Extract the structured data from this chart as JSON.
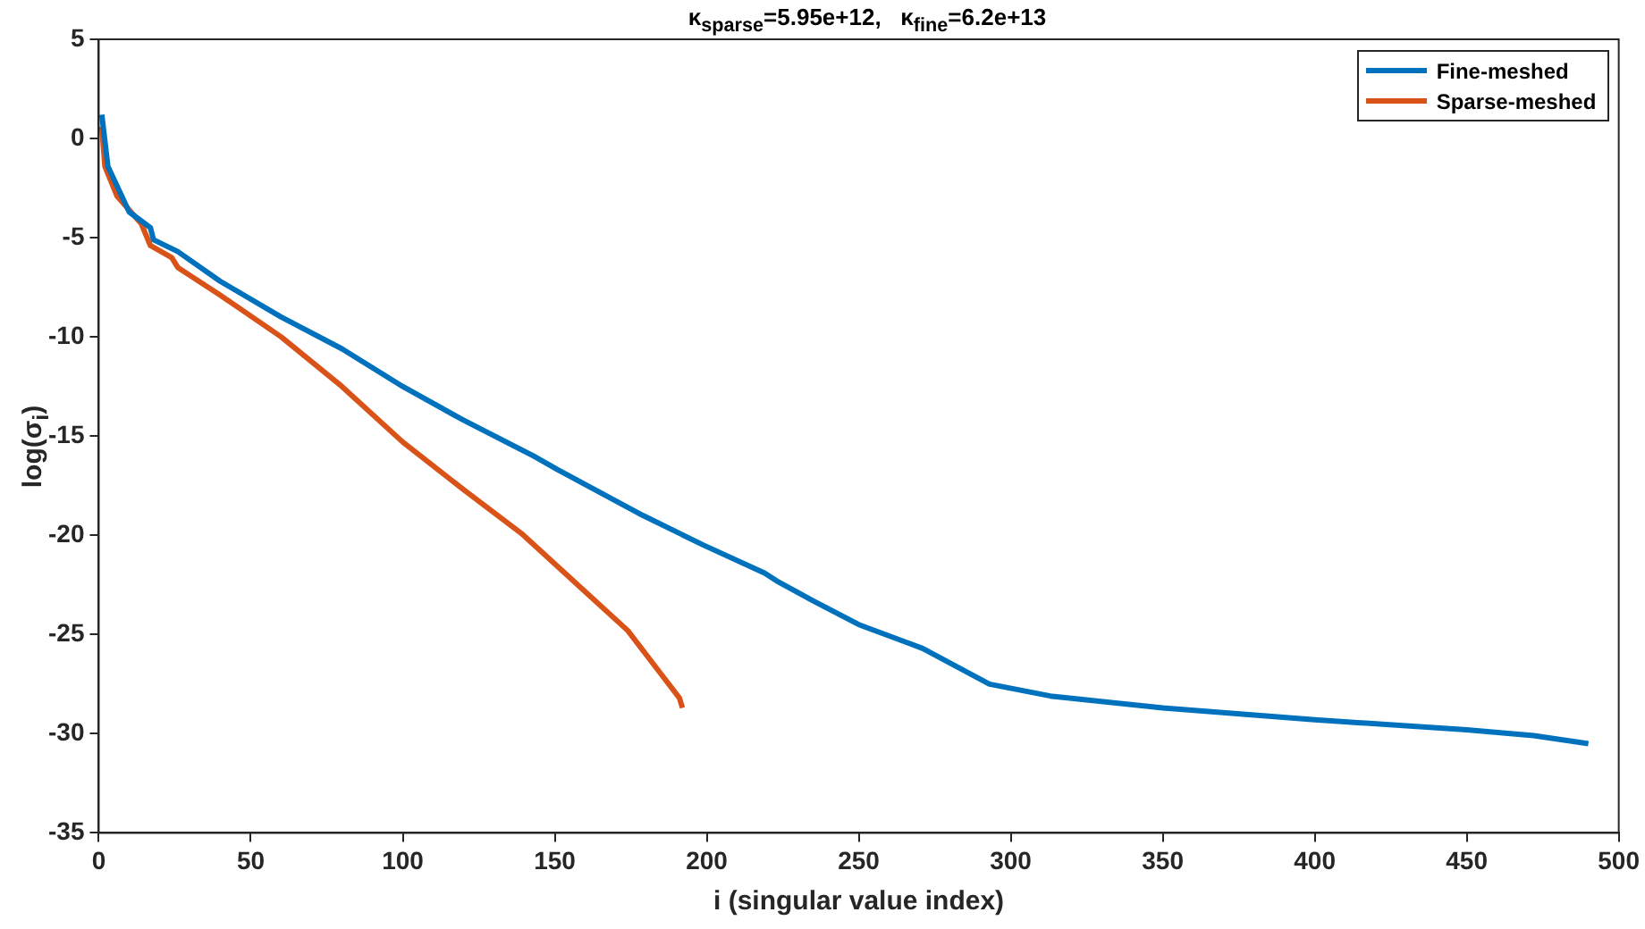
{
  "chart_data": {
    "type": "line",
    "title": "κ$_{sparse}$=5.95e+12,   κ$_{fine}$=6.2e+13",
    "xlabel": "i (singular value index)",
    "ylabel": "log(σ$_{i}$)",
    "xlim": [
      0,
      500
    ],
    "xticks": [
      0,
      50,
      100,
      150,
      200,
      250,
      300,
      350,
      400,
      450,
      500
    ],
    "ylim": [
      -35,
      5
    ],
    "yticks": [
      -35,
      -30,
      -25,
      -20,
      -15,
      -10,
      -5,
      0,
      5
    ],
    "grid": false,
    "legend": "top right",
    "series": [
      {
        "name": "Fine-meshed",
        "color": "#0072bd",
        "x": [
          1,
          3,
          10,
          17,
          18,
          26,
          40,
          60,
          80,
          100,
          120,
          143,
          151,
          179,
          199,
          219,
          223,
          235,
          250,
          271,
          293,
          313,
          350,
          400,
          450,
          472,
          490
        ],
        "values": [
          1.2,
          -1.4,
          -3.7,
          -4.5,
          -5.1,
          -5.7,
          -7.2,
          -9.0,
          -10.6,
          -12.5,
          -14.2,
          -16.0,
          -16.7,
          -19.0,
          -20.5,
          -21.9,
          -22.3,
          -23.3,
          -24.5,
          -25.7,
          -27.5,
          -28.1,
          -28.7,
          -29.3,
          -29.8,
          -30.1,
          -30.5
        ]
      },
      {
        "name": "Sparse-meshed",
        "color": "#d95319",
        "x": [
          1,
          2,
          6,
          14,
          17,
          24,
          26,
          40,
          60,
          80,
          100,
          120,
          139,
          159,
          174,
          185,
          191,
          192
        ],
        "values": [
          0.6,
          -1.4,
          -2.9,
          -4.3,
          -5.4,
          -6.0,
          -6.5,
          -7.9,
          -10.0,
          -12.5,
          -15.3,
          -17.7,
          -19.9,
          -22.7,
          -24.8,
          -27.0,
          -28.2,
          -28.7
        ]
      }
    ]
  }
}
